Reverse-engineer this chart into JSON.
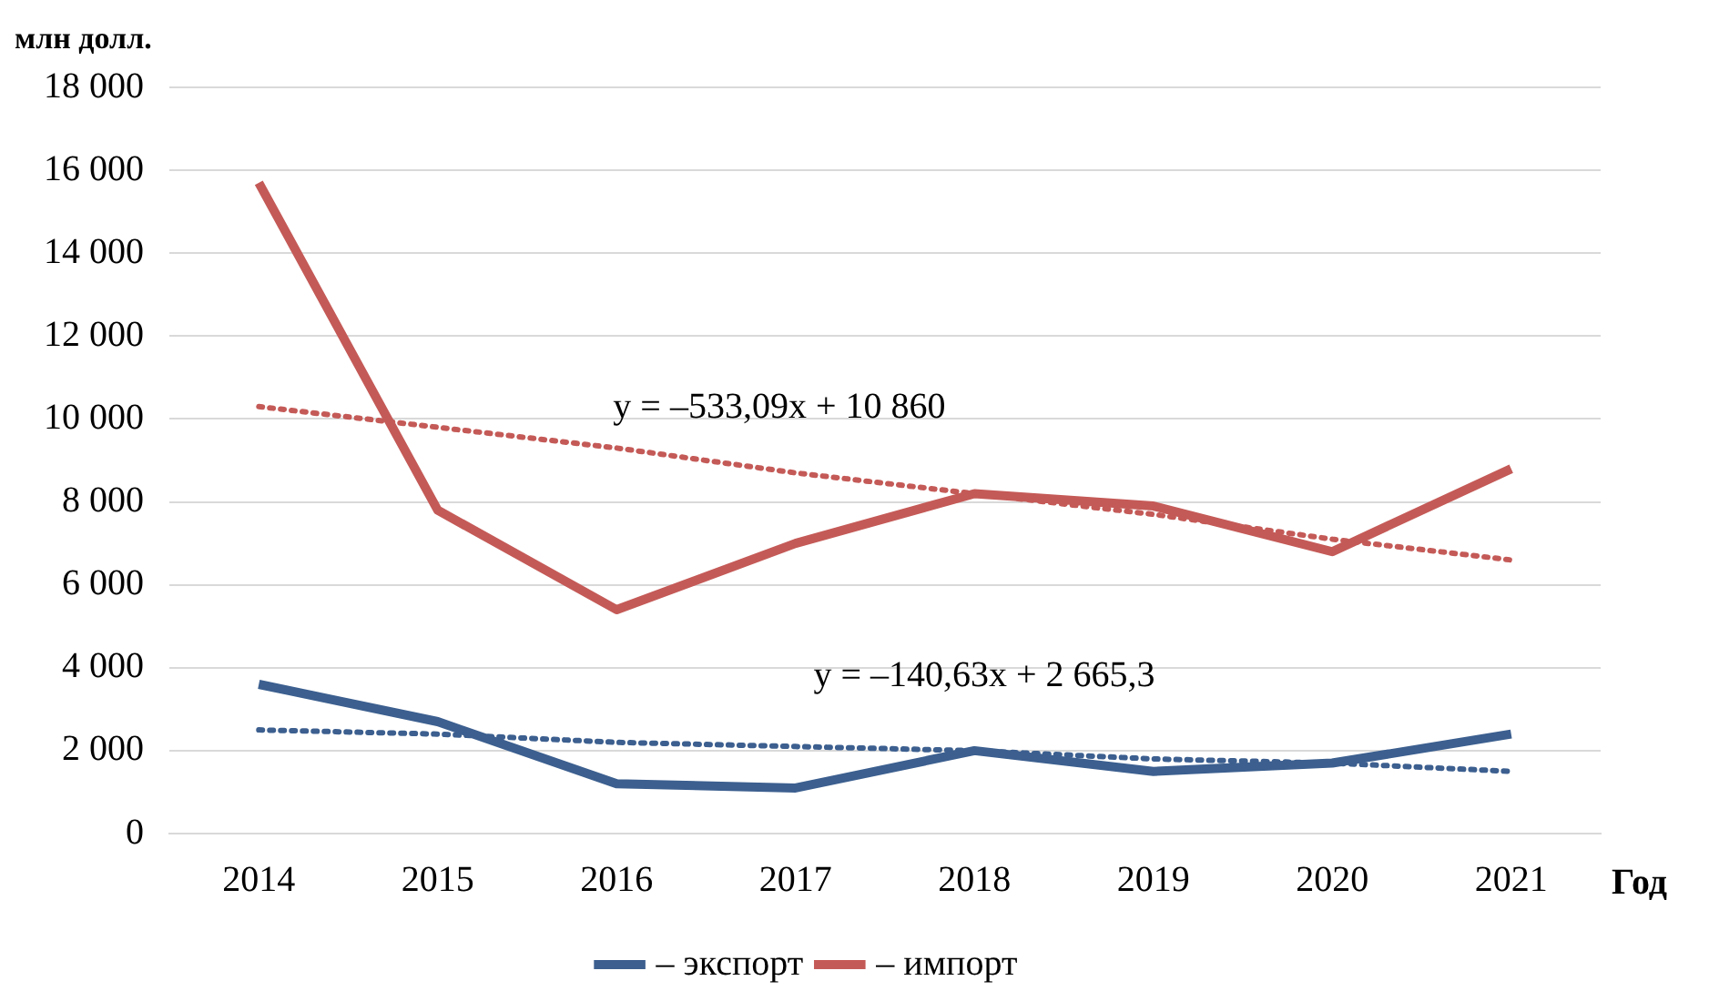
{
  "chart_data": {
    "type": "line",
    "ylabel": "млн долл.",
    "xlabel": "Год",
    "categories": [
      "2014",
      "2015",
      "2016",
      "2017",
      "2018",
      "2019",
      "2020",
      "2021"
    ],
    "series": [
      {
        "name": "– экспорт",
        "color": "#3c5f8f",
        "values": [
          3600,
          2700,
          1200,
          1100,
          2000,
          1500,
          1700,
          2400
        ]
      },
      {
        "name": "– импорт",
        "color": "#c45a57",
        "values": [
          15700,
          7800,
          5400,
          7000,
          8200,
          7900,
          6800,
          8800
        ]
      },
      {
        "type": "line",
        "color": "#3c5f8f",
        "line_style": "dotted",
        "values": [
          2500,
          2400,
          2200,
          2100,
          2000,
          1800,
          1700,
          1500
        ]
      },
      {
        "type": "line",
        "color": "#c45a57",
        "line_style": "dotted",
        "values": [
          10300,
          9800,
          9300,
          8700,
          8200,
          7700,
          7100,
          6600
        ]
      }
    ],
    "ylim": [
      0,
      18000
    ],
    "yticks": [
      {
        "value": 0,
        "label": "0"
      },
      {
        "value": 2000,
        "label": "2 000"
      },
      {
        "value": 4000,
        "label": "4 000"
      },
      {
        "value": 6000,
        "label": "6 000"
      },
      {
        "value": 8000,
        "label": "8 000"
      },
      {
        "value": 10000,
        "label": "10 000"
      },
      {
        "value": 12000,
        "label": "12 000"
      },
      {
        "value": 14000,
        "label": "14 000"
      },
      {
        "value": 16000,
        "label": "16 000"
      },
      {
        "value": 18000,
        "label": "18 000"
      }
    ],
    "grid": "y",
    "legend": "bottom",
    "line_style": "solid",
    "marker": "none",
    "annotations": [
      "y = –533,09x + 10 860",
      "y = –140,63x + 2 665,3"
    ]
  }
}
